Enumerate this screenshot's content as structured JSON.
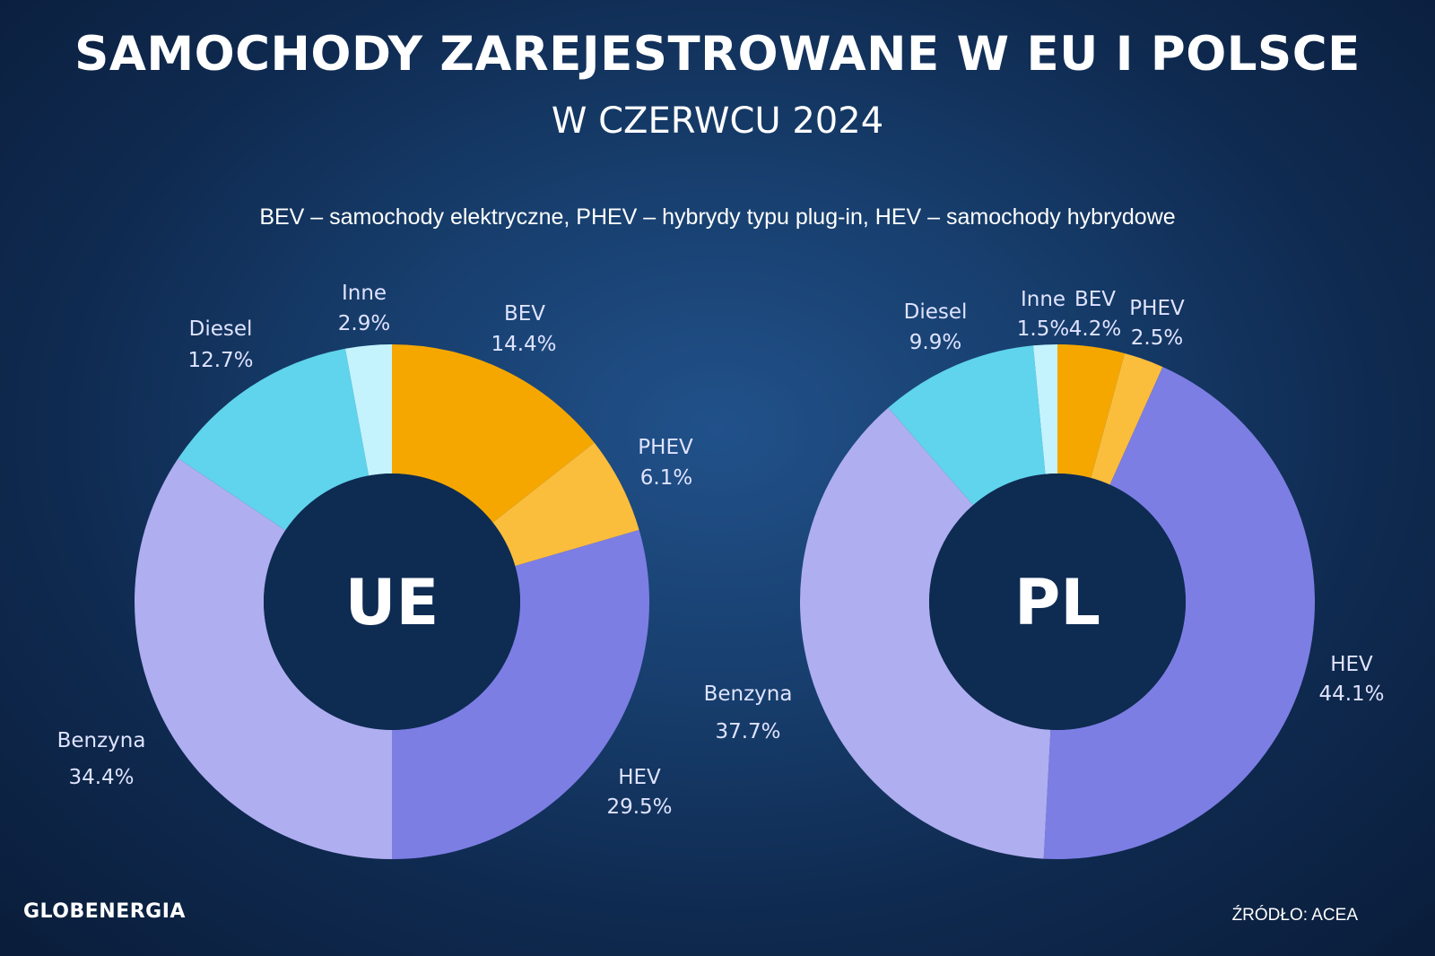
{
  "header": {
    "title": "SAMOCHODY ZAREJESTROWANE W EU I POLSCE",
    "subtitle": "W CZERWCU 2024",
    "legend_note": "BEV – samochody elektryczne, PHEV – hybrydy typu plug-in, HEV – samochody hybrydowe"
  },
  "footer": {
    "logo": "GLOBENERGIA",
    "source": "ŹRÓDŁO: ACEA"
  },
  "colors": {
    "BEV": "#f5a700",
    "PHEV": "#fbbd3c",
    "HEV": "#7c7ee4",
    "Benzyna": "#afaef0",
    "Diesel": "#5fd4ec",
    "Inne": "#c4f3fd",
    "hole": "#0e2b52"
  },
  "chart_data": [
    {
      "type": "pie",
      "variant": "donut",
      "center_label": "UE",
      "categories": [
        "BEV",
        "PHEV",
        "HEV",
        "Benzyna",
        "Diesel",
        "Inne"
      ],
      "values": [
        14.4,
        6.1,
        29.5,
        34.4,
        12.7,
        2.9
      ],
      "value_labels": [
        "14.4%",
        "6.1%",
        "29.5%",
        "34.4%",
        "12.7%",
        "2.9%"
      ]
    },
    {
      "type": "pie",
      "variant": "donut",
      "center_label": "PL",
      "categories": [
        "BEV",
        "PHEV",
        "HEV",
        "Benzyna",
        "Diesel",
        "Inne"
      ],
      "values": [
        4.2,
        2.5,
        44.1,
        37.7,
        9.9,
        1.5
      ],
      "value_labels": [
        "4.2%",
        "2.5%",
        "44.1%",
        "37.7%",
        "9.9%",
        "1.5%"
      ]
    }
  ]
}
